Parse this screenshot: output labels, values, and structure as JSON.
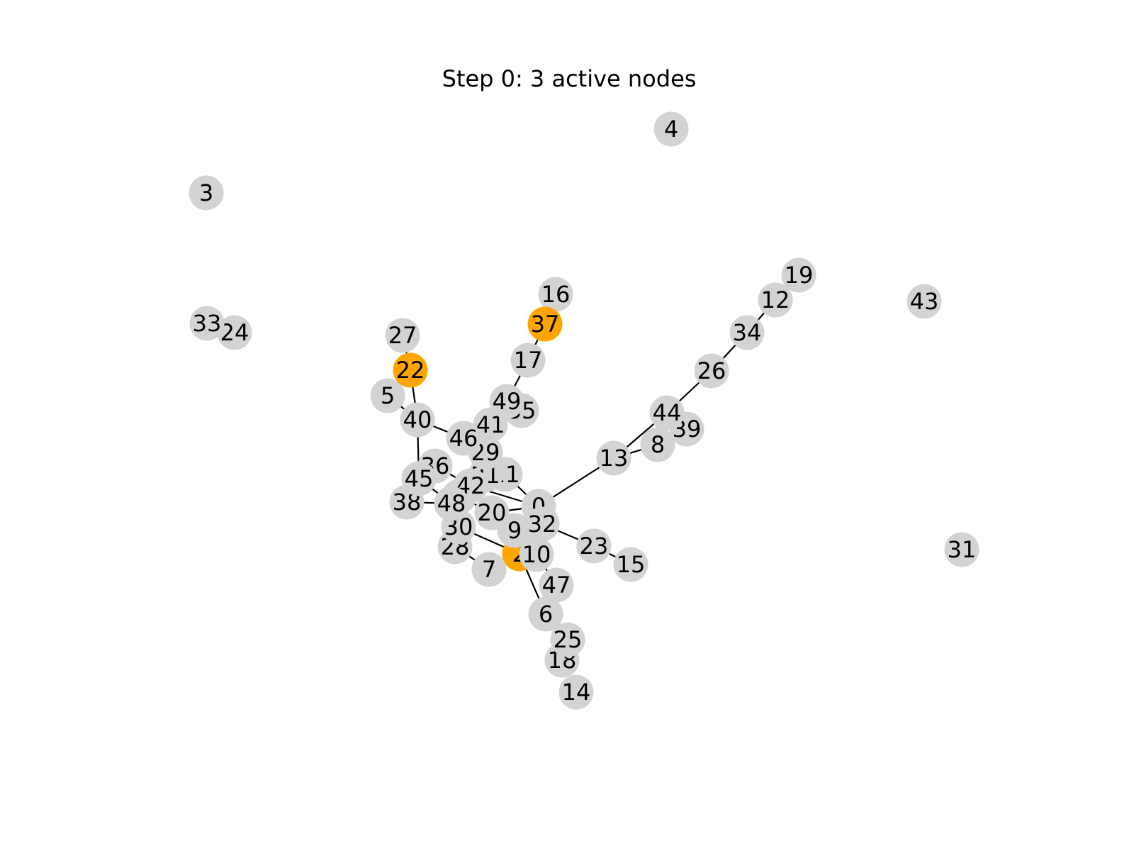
{
  "title": "Step 0: 3 active nodes",
  "colors": {
    "active": "#ffa500",
    "inactive": "#d3d3d3",
    "edge": "#000000",
    "background": "#ffffff"
  },
  "nodes": [
    {
      "id": "0",
      "active": false
    },
    {
      "id": "1",
      "active": false
    },
    {
      "id": "2",
      "active": true
    },
    {
      "id": "3",
      "active": false
    },
    {
      "id": "4",
      "active": false
    },
    {
      "id": "5",
      "active": false
    },
    {
      "id": "6",
      "active": false
    },
    {
      "id": "7",
      "active": false
    },
    {
      "id": "8",
      "active": false
    },
    {
      "id": "9",
      "active": false
    },
    {
      "id": "10",
      "active": false
    },
    {
      "id": "11",
      "active": false
    },
    {
      "id": "12",
      "active": false
    },
    {
      "id": "13",
      "active": false
    },
    {
      "id": "14",
      "active": false
    },
    {
      "id": "15",
      "active": false
    },
    {
      "id": "16",
      "active": false
    },
    {
      "id": "17",
      "active": false
    },
    {
      "id": "18",
      "active": false
    },
    {
      "id": "19",
      "active": false
    },
    {
      "id": "20",
      "active": false
    },
    {
      "id": "21",
      "active": false
    },
    {
      "id": "22",
      "active": true
    },
    {
      "id": "23",
      "active": false
    },
    {
      "id": "24",
      "active": false
    },
    {
      "id": "25",
      "active": false
    },
    {
      "id": "26",
      "active": false
    },
    {
      "id": "27",
      "active": false
    },
    {
      "id": "28",
      "active": false
    },
    {
      "id": "29",
      "active": false
    },
    {
      "id": "30",
      "active": false
    },
    {
      "id": "31",
      "active": false
    },
    {
      "id": "32",
      "active": false
    },
    {
      "id": "33",
      "active": false
    },
    {
      "id": "34",
      "active": false
    },
    {
      "id": "35",
      "active": false
    },
    {
      "id": "36",
      "active": false
    },
    {
      "id": "37",
      "active": true
    },
    {
      "id": "38",
      "active": false
    },
    {
      "id": "39",
      "active": false
    },
    {
      "id": "40",
      "active": false
    },
    {
      "id": "41",
      "active": false
    },
    {
      "id": "42",
      "active": false
    },
    {
      "id": "43",
      "active": false
    },
    {
      "id": "44",
      "active": false
    },
    {
      "id": "45",
      "active": false
    },
    {
      "id": "46",
      "active": false
    },
    {
      "id": "47",
      "active": false
    },
    {
      "id": "48",
      "active": false
    },
    {
      "id": "49",
      "active": false
    }
  ],
  "edges": [
    [
      "0",
      "13"
    ],
    [
      "0",
      "32"
    ],
    [
      "0",
      "11"
    ],
    [
      "0",
      "42"
    ],
    [
      "0",
      "20"
    ],
    [
      "13",
      "8"
    ],
    [
      "13",
      "44"
    ],
    [
      "44",
      "26"
    ],
    [
      "26",
      "34"
    ],
    [
      "34",
      "12"
    ],
    [
      "12",
      "19"
    ],
    [
      "32",
      "23"
    ],
    [
      "23",
      "15"
    ],
    [
      "32",
      "9"
    ],
    [
      "2",
      "10"
    ],
    [
      "2",
      "6"
    ],
    [
      "2",
      "30"
    ],
    [
      "2",
      "9"
    ],
    [
      "6",
      "25"
    ],
    [
      "25",
      "18"
    ],
    [
      "10",
      "47"
    ],
    [
      "28",
      "7"
    ],
    [
      "38",
      "48"
    ],
    [
      "48",
      "45"
    ],
    [
      "45",
      "40"
    ],
    [
      "40",
      "22"
    ],
    [
      "22",
      "27"
    ],
    [
      "40",
      "5"
    ],
    [
      "40",
      "46"
    ],
    [
      "46",
      "41"
    ],
    [
      "46",
      "29"
    ],
    [
      "41",
      "49"
    ],
    [
      "49",
      "17"
    ],
    [
      "17",
      "37"
    ],
    [
      "37",
      "16"
    ],
    [
      "42",
      "36"
    ],
    [
      "42",
      "21"
    ],
    [
      "1",
      "20"
    ],
    [
      "48",
      "30"
    ]
  ]
}
